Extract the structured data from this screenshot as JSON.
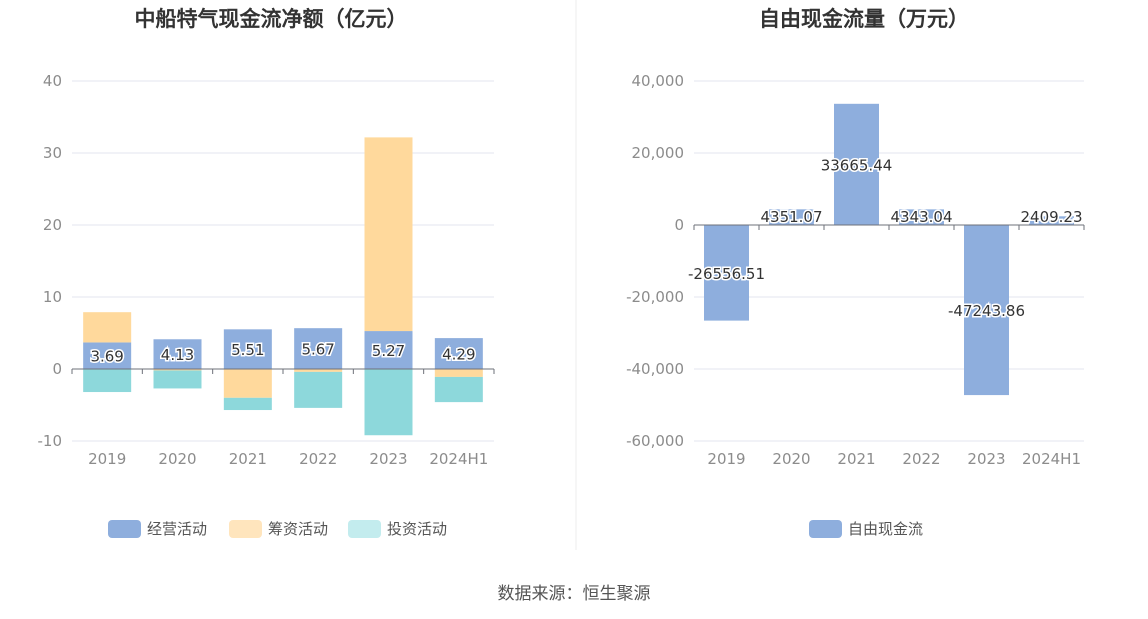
{
  "source_text": "数据来源：恒生聚源",
  "chart_data": [
    {
      "type": "bar",
      "stacked": true,
      "title": "中船特气现金流净额（亿元）",
      "categories": [
        "2019",
        "2020",
        "2021",
        "2022",
        "2023",
        "2024H1"
      ],
      "ylim": [
        -10,
        40
      ],
      "yticks": [
        "-10",
        "0",
        "10",
        "20",
        "30",
        "40"
      ],
      "grid": true,
      "legend_position": "bottom",
      "series": [
        {
          "name": "经营活动",
          "color": "#8eaedd",
          "values": [
            3.69,
            4.13,
            5.51,
            5.67,
            5.27,
            4.29
          ],
          "labels": [
            "3.69",
            "4.13",
            "5.51",
            "5.67",
            "5.27",
            "4.29"
          ]
        },
        {
          "name": "筹资活动",
          "color": "#ffd99c",
          "values": [
            4.2,
            -0.2,
            -4.0,
            -0.4,
            26.9,
            -1.1
          ]
        },
        {
          "name": "投资活动",
          "color": "#8dd8db",
          "values": [
            -3.2,
            -2.5,
            -1.7,
            -5.0,
            -9.2,
            -3.5
          ]
        }
      ],
      "legend": [
        {
          "name": "经营活动",
          "color": "#8eaedd"
        },
        {
          "name": "筹资活动",
          "color": "#ffe5bd"
        },
        {
          "name": "投资活动",
          "color": "#c3ecee"
        }
      ]
    },
    {
      "type": "bar",
      "title": "自由现金流量（万元）",
      "categories": [
        "2019",
        "2020",
        "2021",
        "2022",
        "2023",
        "2024H1"
      ],
      "ylim": [
        -60000,
        40000
      ],
      "yticks": [
        "-60,000",
        "-40,000",
        "-20,000",
        "0",
        "20,000",
        "40,000"
      ],
      "grid": true,
      "legend_position": "bottom",
      "series": [
        {
          "name": "自由现金流",
          "color": "#8eaedd",
          "values": [
            -26556.51,
            4351.07,
            33665.44,
            4343.04,
            -47243.86,
            2409.23
          ],
          "labels": [
            "-26556.51",
            "4351.07",
            "33665.44",
            "4343.04",
            "-47243.86",
            "2409.23"
          ]
        }
      ],
      "legend": [
        {
          "name": "自由现金流",
          "color": "#8eaedd"
        }
      ]
    }
  ]
}
